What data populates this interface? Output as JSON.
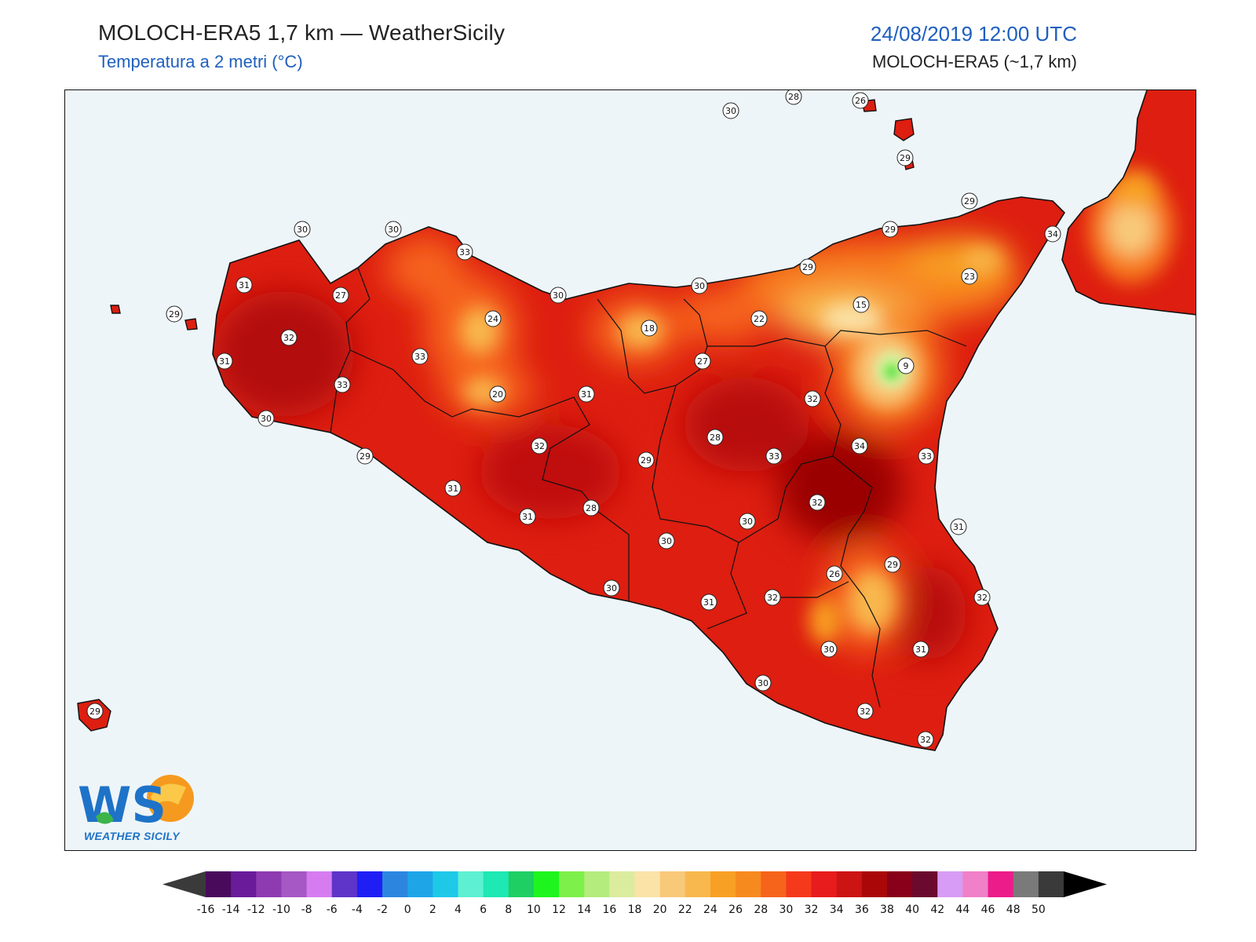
{
  "header": {
    "title": "MOLOCH-ERA5 1,7 km — WeatherSicily",
    "subtitle": "Temperatura a 2 metri (°C)",
    "datetime": "24/08/2019 12:00 UTC",
    "model": "MOLOCH-ERA5 (~1,7 km)"
  },
  "logo": {
    "letters": "WS",
    "caption": "WEATHER SICILY"
  },
  "map": {
    "sea_color": "#eef5f9",
    "stations": [
      {
        "value": "28"
      },
      {
        "value": "26"
      },
      {
        "value": "30"
      },
      {
        "value": "29"
      },
      {
        "value": "29"
      },
      {
        "value": "34"
      },
      {
        "value": "29"
      },
      {
        "value": "23"
      },
      {
        "value": "29"
      },
      {
        "value": "30"
      },
      {
        "value": "15"
      },
      {
        "value": "22"
      },
      {
        "value": "9"
      },
      {
        "value": "30"
      },
      {
        "value": "30"
      },
      {
        "value": "33"
      },
      {
        "value": "30"
      },
      {
        "value": "31"
      },
      {
        "value": "27"
      },
      {
        "value": "29"
      },
      {
        "value": "24"
      },
      {
        "value": "18"
      },
      {
        "value": "32"
      },
      {
        "value": "33"
      },
      {
        "value": "27"
      },
      {
        "value": "31"
      },
      {
        "value": "33"
      },
      {
        "value": "20"
      },
      {
        "value": "31"
      },
      {
        "value": "32"
      },
      {
        "value": "30"
      },
      {
        "value": "32"
      },
      {
        "value": "28"
      },
      {
        "value": "34"
      },
      {
        "value": "29"
      },
      {
        "value": "33"
      },
      {
        "value": "29"
      },
      {
        "value": "33"
      },
      {
        "value": "31"
      },
      {
        "value": "32"
      },
      {
        "value": "31"
      },
      {
        "value": "28"
      },
      {
        "value": "30"
      },
      {
        "value": "30"
      },
      {
        "value": "31"
      },
      {
        "value": "29"
      },
      {
        "value": "26"
      },
      {
        "value": "30"
      },
      {
        "value": "32"
      },
      {
        "value": "31"
      },
      {
        "value": "32"
      },
      {
        "value": "30"
      },
      {
        "value": "31"
      },
      {
        "value": "30"
      },
      {
        "value": "32"
      },
      {
        "value": "32"
      },
      {
        "value": "29"
      }
    ]
  },
  "colorbar": {
    "unit": "°C",
    "ticks": [
      "-16",
      "-14",
      "-12",
      "-10",
      "-8",
      "-6",
      "-4",
      "-2",
      "0",
      "2",
      "4",
      "6",
      "8",
      "10",
      "12",
      "14",
      "16",
      "18",
      "20",
      "22",
      "24",
      "26",
      "28",
      "30",
      "32",
      "34",
      "36",
      "38",
      "40",
      "42",
      "44",
      "46",
      "48",
      "50"
    ],
    "colors": [
      "#4a0a5c",
      "#6a1b9a",
      "#8e3ab0",
      "#a658c4",
      "#d67cf0",
      "#5e35c8",
      "#1f1ff5",
      "#2c86e0",
      "#1ea5e8",
      "#1ec9e8",
      "#5ef0d2",
      "#1ee8b4",
      "#1ecf64",
      "#1ef51e",
      "#7ef04a",
      "#b4ec7e",
      "#dcec9e",
      "#fbe3a8",
      "#f9c97a",
      "#f8b84e",
      "#f8a024",
      "#f78a1e",
      "#f6641c",
      "#f53a1c",
      "#e81c1c",
      "#cc1414",
      "#aa0808",
      "#88001a",
      "#6b0a2e",
      "#d79cf5",
      "#f080c8",
      "#ec1c8a",
      "#7a7a7a",
      "#3a3a3a",
      "#000000"
    ]
  }
}
